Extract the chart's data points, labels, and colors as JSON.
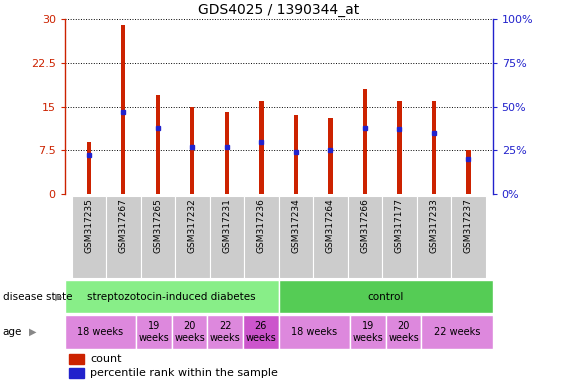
{
  "title": "GDS4025 / 1390344_at",
  "samples": [
    "GSM317235",
    "GSM317267",
    "GSM317265",
    "GSM317232",
    "GSM317231",
    "GSM317236",
    "GSM317234",
    "GSM317264",
    "GSM317266",
    "GSM317177",
    "GSM317233",
    "GSM317237"
  ],
  "counts": [
    9.0,
    29.0,
    17.0,
    15.0,
    14.0,
    16.0,
    13.5,
    13.0,
    18.0,
    16.0,
    16.0,
    7.5
  ],
  "percentiles": [
    22,
    47,
    38,
    27,
    27,
    30,
    24,
    25,
    38,
    37,
    35,
    20
  ],
  "ylim": [
    0,
    30
  ],
  "y2lim": [
    0,
    100
  ],
  "yticks": [
    0,
    7.5,
    15,
    22.5,
    30
  ],
  "ytick_labels": [
    "0",
    "7.5",
    "15",
    "22.5",
    "30"
  ],
  "y2ticks": [
    0,
    25,
    50,
    75,
    100
  ],
  "y2tick_labels": [
    "0%",
    "25%",
    "50%",
    "75%",
    "100%"
  ],
  "bar_color": "#cc2200",
  "marker_color": "#2222cc",
  "grid_color": "#000000",
  "disease_groups": [
    {
      "label": "streptozotocin-induced diabetes",
      "start": 0,
      "end": 6,
      "color": "#88ee88"
    },
    {
      "label": "control",
      "start": 6,
      "end": 12,
      "color": "#55cc55"
    }
  ],
  "age_groups": [
    {
      "label": "18 weeks",
      "start": 0,
      "end": 2,
      "color": "#dd88dd"
    },
    {
      "label": "19\nweeks",
      "start": 2,
      "end": 3,
      "color": "#dd88dd"
    },
    {
      "label": "20\nweeks",
      "start": 3,
      "end": 4,
      "color": "#dd88dd"
    },
    {
      "label": "22\nweeks",
      "start": 4,
      "end": 5,
      "color": "#dd88dd"
    },
    {
      "label": "26\nweeks",
      "start": 5,
      "end": 6,
      "color": "#cc55cc"
    },
    {
      "label": "18 weeks",
      "start": 6,
      "end": 8,
      "color": "#dd88dd"
    },
    {
      "label": "19\nweeks",
      "start": 8,
      "end": 9,
      "color": "#dd88dd"
    },
    {
      "label": "20\nweeks",
      "start": 9,
      "end": 10,
      "color": "#dd88dd"
    },
    {
      "label": "22 weeks",
      "start": 10,
      "end": 12,
      "color": "#dd88dd"
    }
  ],
  "label_color_red": "#cc2200",
  "label_color_blue": "#2222cc",
  "bg_color": "#ffffff",
  "tick_area_color": "#cccccc"
}
